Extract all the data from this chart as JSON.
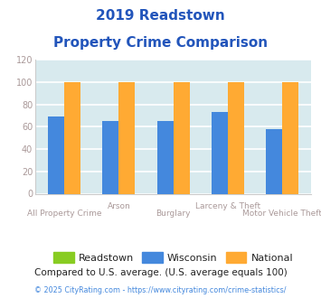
{
  "title_line1": "2019 Readstown",
  "title_line2": "Property Crime Comparison",
  "title_color": "#2255bb",
  "categories": [
    "All Property Crime",
    "Arson",
    "Burglary",
    "Larceny & Theft",
    "Motor Vehicle Theft"
  ],
  "xlabel_top": [
    "",
    "Arson",
    "",
    "Larceny & Theft",
    ""
  ],
  "xlabel_bot": [
    "All Property Crime",
    "",
    "Burglary",
    "",
    "Motor Vehicle Theft"
  ],
  "readstown": [
    0,
    0,
    0,
    0,
    0
  ],
  "wisconsin": [
    69,
    65,
    65,
    73,
    58
  ],
  "national": [
    100,
    100,
    100,
    100,
    100
  ],
  "readstown_color": "#88cc22",
  "wisconsin_color": "#4488dd",
  "national_color": "#ffaa33",
  "ylim": [
    0,
    120
  ],
  "yticks": [
    0,
    20,
    40,
    60,
    80,
    100,
    120
  ],
  "plot_bg_color": "#d8eaee",
  "fig_bg_color": "#ffffff",
  "grid_color": "#ffffff",
  "legend_labels": [
    "Readstown",
    "Wisconsin",
    "National"
  ],
  "footnote1": "Compared to U.S. average. (U.S. average equals 100)",
  "footnote2": "© 2025 CityRating.com - https://www.cityrating.com/crime-statistics/",
  "footnote1_color": "#222222",
  "footnote2_color": "#4488dd",
  "xlabel_top_color": "#aa9999",
  "xlabel_bot_color": "#aa9999",
  "ytick_color": "#aa9999"
}
